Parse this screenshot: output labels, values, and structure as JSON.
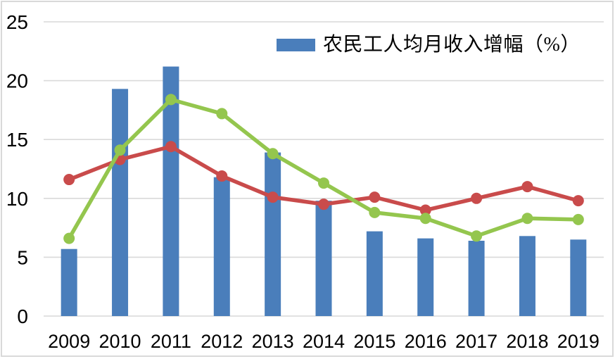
{
  "legend": {
    "label": "农民工人均月收入增幅（%）",
    "swatch_color": "#4A7EBB"
  },
  "chart_data": {
    "type": "combo",
    "title": "",
    "xlabel": "",
    "ylabel": "",
    "categories": [
      "2009",
      "2010",
      "2011",
      "2012",
      "2013",
      "2014",
      "2015",
      "2016",
      "2017",
      "2018",
      "2019"
    ],
    "series": [
      {
        "name": "农民工人均月收入增幅（%）",
        "type": "bar",
        "color": "#4A7EBB",
        "in_legend": true,
        "values": [
          5.7,
          19.3,
          21.2,
          11.8,
          13.9,
          9.8,
          7.2,
          6.6,
          6.4,
          6.8,
          6.5
        ]
      },
      {
        "name": "series-red-line",
        "type": "line",
        "color": "#C94B4B",
        "marker": "circle",
        "in_legend": false,
        "values": [
          11.6,
          13.3,
          14.4,
          11.9,
          10.1,
          9.5,
          10.1,
          9.0,
          10.0,
          11.0,
          9.8
        ]
      },
      {
        "name": "series-green-line",
        "type": "line",
        "color": "#94C64E",
        "marker": "circle",
        "in_legend": false,
        "values": [
          6.6,
          14.1,
          18.4,
          17.2,
          13.8,
          11.3,
          8.8,
          8.3,
          6.8,
          8.3,
          8.2
        ]
      }
    ],
    "ylim": [
      0,
      25
    ],
    "yticks": [
      0,
      5,
      10,
      15,
      20,
      25
    ],
    "grid": "horizontal",
    "gridline_color": "#D9D9D9",
    "frame_color": "#D9D9D9",
    "text_color": "#000000",
    "legend_position": "top-center"
  }
}
